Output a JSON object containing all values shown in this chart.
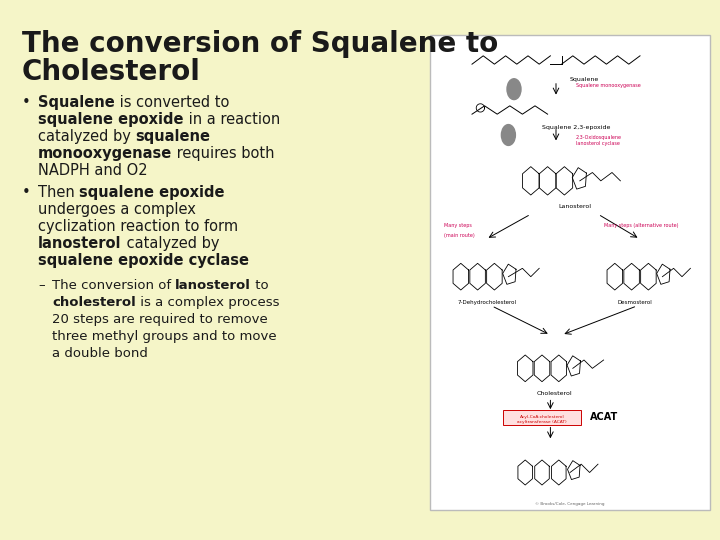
{
  "background_color": "#f5f5c8",
  "title_line1": "The conversion of Squalene to",
  "title_line2": "Cholesterol",
  "title_fontsize": 20,
  "text_color": "#1a1a1a",
  "font_size_body": 10.5,
  "font_size_sub": 9.5,
  "diagram_box_color": "#ffffff",
  "diagram_box_edge": "#bbbbbb",
  "copyright_text": "© Brooks/Cole, Cengage Learning",
  "acat_label": "ACAT",
  "pink_color": "#cc0055",
  "gray_circle_color": "#888888"
}
